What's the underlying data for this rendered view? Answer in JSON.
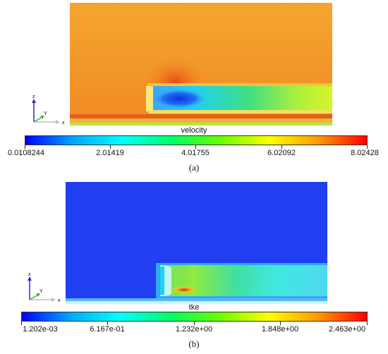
{
  "panel_a": {
    "field_name": "velocity",
    "colorbar_ticks": [
      "0.0108244",
      "2.01419",
      "4.01755",
      "6.02092",
      "8.02428"
    ],
    "caption": "(a)",
    "axes": {
      "z": "z",
      "y": "Y",
      "x": "x"
    }
  },
  "panel_b": {
    "field_name": "tke",
    "colorbar_ticks": [
      "1.202e-03",
      "6.167e-01",
      "1.232e+00",
      "1.848e+00",
      "2.463e+00"
    ],
    "caption": "(b)",
    "axes": {
      "z": "z",
      "y": "Y",
      "x": "x"
    }
  },
  "colors": {
    "rainbow": [
      "#0000ff",
      "#00aaff",
      "#00ffff",
      "#00ff66",
      "#66ff00",
      "#ffff00",
      "#ff9900",
      "#ff0000"
    ],
    "background_a": "#f39a2a",
    "background_b": "#1f3ff0"
  }
}
